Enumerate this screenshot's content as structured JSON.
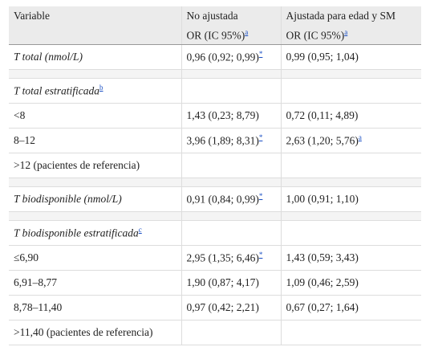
{
  "header": [
    {
      "line1": "Variable"
    },
    {
      "line1": "No ajustada",
      "line2": "OR (IC 95%)",
      "note": "a"
    },
    {
      "line1": "Ajustada para edad y SM",
      "line2": "OR (IC 95%)",
      "note": "a"
    }
  ],
  "sections": [
    {
      "title": "T total (nmol/L)",
      "title_values": [
        {
          "text": "0,96 (0,92; 0,99)",
          "note": "*"
        },
        {
          "text": "0,99 (0,95; 1,04)"
        }
      ],
      "rows": []
    },
    {
      "title": "T total estratificada",
      "title_note": "b",
      "rows": [
        {
          "label": "<8",
          "values": [
            {
              "text": "1,43 (0,23; 8,79)"
            },
            {
              "text": "0,72 (0,11; 4,89)"
            }
          ]
        },
        {
          "label": "8–12",
          "values": [
            {
              "text": "3,96 (1,89; 8,31)",
              "note": "*"
            },
            {
              "text": "2,63 (1,20; 5,76)",
              "note": "a"
            }
          ]
        },
        {
          "label": ">12 (pacientes de referencia)",
          "values": []
        }
      ]
    },
    {
      "title": "T biodisponible (nmol/L)",
      "title_values": [
        {
          "text": "0,91 (0,84; 0,99)",
          "note": "*"
        },
        {
          "text": "1,00 (0,91; 1,10)"
        }
      ],
      "rows": []
    },
    {
      "title": "T biodisponible estratificada",
      "title_note": "c",
      "rows": [
        {
          "label": "≤6,90",
          "values": [
            {
              "text": "2,95 (1,35; 6,46)",
              "note": "*"
            },
            {
              "text": "1,43 (0,59; 3,43)"
            }
          ]
        },
        {
          "label": "6,91–8,77",
          "values": [
            {
              "text": "1,90 (0,87; 4,17)"
            },
            {
              "text": "1,09 (0,46; 2,59)"
            }
          ]
        },
        {
          "label": "8,78–11,40",
          "values": [
            {
              "text": "0,97 (0,42; 2,21)"
            },
            {
              "text": "0,67 (0,27; 1,64)"
            }
          ]
        },
        {
          "label": ">11,40 (pacientes de referencia)",
          "values": []
        }
      ]
    }
  ]
}
